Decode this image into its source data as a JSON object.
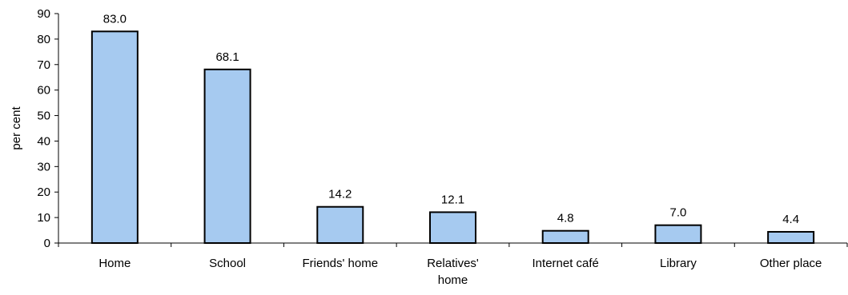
{
  "chart_data": {
    "type": "bar",
    "categories": [
      [
        "Home"
      ],
      [
        "School"
      ],
      [
        "Friends' home"
      ],
      [
        "Relatives'",
        "home"
      ],
      [
        "Internet café"
      ],
      [
        "Library"
      ],
      [
        "Other place"
      ]
    ],
    "values": [
      83.0,
      68.1,
      14.2,
      12.1,
      4.8,
      7.0,
      4.4
    ],
    "value_labels": [
      "83.0",
      "68.1",
      "14.2",
      "12.1",
      "4.8",
      "7.0",
      "4.4"
    ],
    "ylabel": "per cent",
    "xlabel": "",
    "ylim": [
      0,
      90
    ],
    "yticks": [
      0,
      10,
      20,
      30,
      40,
      50,
      60,
      70,
      80,
      90
    ],
    "grid": false,
    "bar_color": "#a6caf0",
    "bar_edge_color": "#000000"
  }
}
